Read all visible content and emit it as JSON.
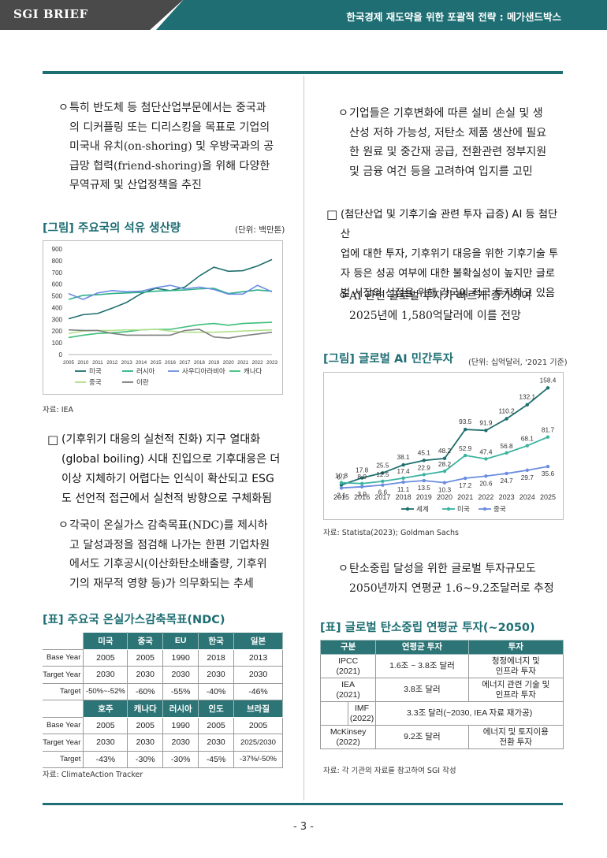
{
  "header": {
    "brand": "SGI BRIEF",
    "title": "한국경제 재도약을 위한 포괄적 전략 : 메가샌드박스"
  },
  "left": {
    "bullet1": {
      "marker": "ㅇ",
      "lines": [
        "특히 반도체 등 첨단산업부문에서는 중국과",
        "의 디커플링 또는 디리스킹을 목표로 기업의",
        "미국내 유치(on-shoring) 및 우방국과의 공",
        "급망 협력(friend-shoring)을 위해 다양한",
        "무역규제 및 산업정책을 추진"
      ]
    },
    "oil_figure": {
      "title": "[그림] 주요국의 석유 생산량",
      "unit": "(단위: 백만톤)",
      "source": "자료: IEA"
    },
    "square1": {
      "marker": "□",
      "lines": [
        "(기후위기 대응의 실천적 진화) 지구 열대화",
        "(global boiling) 시대 진입으로 기후대응은 더",
        "이상 지체하기 어렵다는 인식이 확산되고 ESG",
        "도 선언적 접근에서 실천적 방향으로 구체화됨"
      ]
    },
    "bullet2": {
      "marker": "ㅇ",
      "lines": [
        "각국이 온실가스 감축목표(NDC)를 제시하",
        "고 달성과정을 점검해 나가는 한편 기업차원",
        "에서도 기후공시(이산화탄소배출량, 기후위",
        "기의 재무적 영향 등)가 의무화되는 추세"
      ]
    },
    "ndc_table": {
      "title": "[표] 주요국 온실가스감축목표(NDC)",
      "header1": [
        "",
        "미국",
        "중국",
        "EU",
        "한국",
        "일본"
      ],
      "rows1": [
        [
          "Base Year",
          "2005",
          "2005",
          "1990",
          "2018",
          "2013"
        ],
        [
          "Target Year",
          "2030",
          "2030",
          "2030",
          "2030",
          "2030"
        ],
        [
          "Target",
          "-50%~-52%",
          "-60%",
          "-55%",
          "-40%",
          "-46%"
        ]
      ],
      "header2": [
        "",
        "호주",
        "캐나다",
        "러시아",
        "인도",
        "브라질"
      ],
      "rows2": [
        [
          "Base Year",
          "2005",
          "2005",
          "1990",
          "2005",
          "2005"
        ],
        [
          "Target Year",
          "2030",
          "2030",
          "2030",
          "2030",
          "2025/2030"
        ],
        [
          "Target",
          "-43%",
          "-30%",
          "-30%",
          "-45%",
          "-37%/-50%"
        ]
      ],
      "source": "자료: ClimateAction Tracker"
    }
  },
  "right": {
    "bullet1": {
      "marker": "ㅇ",
      "lines": [
        "기업들은 기후변화에 따른 설비 손실 및 생",
        "산성 저하 가능성, 저탄소 제품 생산에 필요",
        "한 원료 및 중간재 공급, 전환관련 정부지원",
        "및 금융 여건 등을 고려하여 입지를 고민"
      ]
    },
    "square1": {
      "marker": "□",
      "lines": [
        "(첨단산업 및 기후기술 관련 투자 급증) AI 등 첨단산",
        "업에 대한 투자, 기후위기 대응을 위한 기후기술 투",
        "자 등은 성공 여부에 대한 불확실성이 높지만 글로",
        "벌 시장의 선점을 위해 각국이 적극 투자하고 있음"
      ]
    },
    "bullet2": {
      "marker": "ㅇ",
      "lines": [
        "AI 관련 글로벌 투자가 빠르게 증가하여",
        "2025년에 1,580억달러에 이를 전망"
      ]
    },
    "ai_figure": {
      "title": "[그림] 글로벌 AI 민간투자",
      "unit": "(단위: 십억달러, '2021 기준)",
      "source": "자료: Statista(2023); Goldman Sachs"
    },
    "bullet3": {
      "marker": "ㅇ",
      "lines": [
        "탄소중립 달성을 위한 글로벌 투자규모도",
        "2050년까지 연평균 1.6~9.2조달러로 추정"
      ]
    },
    "inv_table": {
      "title": "[표] 글로벌 탄소중립 연평균 투자(~2050)",
      "headers": [
        "구분",
        "연평균 투자",
        "투자"
      ],
      "rows": [
        {
          "org": "IPCC\n(2021)",
          "amount": "1.6조 ~ 3.8조 달러",
          "area": "청정에너지 및\n인프라 투자"
        },
        {
          "org": "IEA\n(2021)",
          "amount": "3.8조 달러",
          "area": "에너지 관련 기술 및\n인프라 투자"
        },
        {
          "org": "IMF\n(2022)",
          "amount": "3.3조 달러(~2030, IEA 자료 재가공)",
          "area": ""
        },
        {
          "org": "McKinsey\n(2022)",
          "amount": "9.2조 달러",
          "area": "에너지 및 토지이용\n전환 투자"
        }
      ],
      "source": "자료: 각 기관의 자료를 참고하여 SGI 작성"
    }
  },
  "page_number": "- 3 -",
  "chart_data": [
    {
      "type": "line",
      "title": "[그림] 주요국의 석유 생산량",
      "ylabel": "(단위: 백만톤)",
      "ylim": [
        0,
        900
      ],
      "yticks": [
        0,
        100,
        200,
        300,
        400,
        500,
        600,
        700,
        800,
        900
      ],
      "x": [
        "2005",
        "2010",
        "2011",
        "2012",
        "2013",
        "2014",
        "2015",
        "2016",
        "2017",
        "2018",
        "2019",
        "2020",
        "2021",
        "2022",
        "2023"
      ],
      "series": [
        {
          "name": "미국",
          "color": "#1e6e6e",
          "values": [
            305,
            340,
            350,
            395,
            445,
            520,
            565,
            545,
            575,
            670,
            745,
            710,
            715,
            755,
            810
          ]
        },
        {
          "name": "러시아",
          "color": "#2db08a",
          "values": [
            470,
            505,
            510,
            520,
            525,
            530,
            540,
            545,
            550,
            560,
            565,
            520,
            535,
            550,
            540
          ]
        },
        {
          "name": "사우디아라비아",
          "color": "#6b8ce0",
          "values": [
            520,
            470,
            525,
            545,
            535,
            540,
            570,
            590,
            560,
            575,
            555,
            515,
            515,
            590,
            535
          ]
        },
        {
          "name": "캐나다",
          "color": "#3dbf7a",
          "values": [
            145,
            165,
            180,
            185,
            195,
            210,
            215,
            215,
            235,
            255,
            265,
            250,
            265,
            270,
            275
          ]
        },
        {
          "name": "중국",
          "color": "#b2e08c",
          "values": [
            180,
            200,
            205,
            205,
            210,
            210,
            215,
            200,
            190,
            190,
            190,
            195,
            200,
            205,
            210
          ]
        },
        {
          "name": "이란",
          "color": "#808080",
          "values": [
            210,
            205,
            205,
            180,
            165,
            165,
            165,
            165,
            205,
            215,
            150,
            140,
            160,
            175,
            190
          ]
        }
      ],
      "legend": "bottom"
    },
    {
      "type": "line",
      "title": "[그림] 글로벌 AI 민간투자",
      "ylabel": "(단위: 십억달러, '2021 기준)",
      "x": [
        "2015",
        "2016",
        "2017",
        "2018",
        "2019",
        "2020",
        "2021",
        "2022",
        "2023",
        "2024",
        "2025"
      ],
      "series": [
        {
          "name": "세계",
          "color": "#1e6e6e",
          "values": [
            6.7,
            17.8,
            25.5,
            38.1,
            45.1,
            48.2,
            93.5,
            91.9,
            110.2,
            132.1,
            158.4
          ]
        },
        {
          "name": "미국",
          "color": "#3ab3a0",
          "values": [
            10.3,
            8.9,
            12.5,
            17.4,
            22.9,
            28.2,
            52.9,
            47.4,
            56.8,
            68.1,
            81.7
          ]
        },
        {
          "name": "중국",
          "color": "#6b8ce0",
          "values": [
            2.1,
            3.9,
            6.6,
            11.1,
            13.5,
            10.3,
            17.2,
            20.6,
            24.7,
            29.7,
            35.6
          ]
        }
      ],
      "legend": "bottom"
    }
  ]
}
